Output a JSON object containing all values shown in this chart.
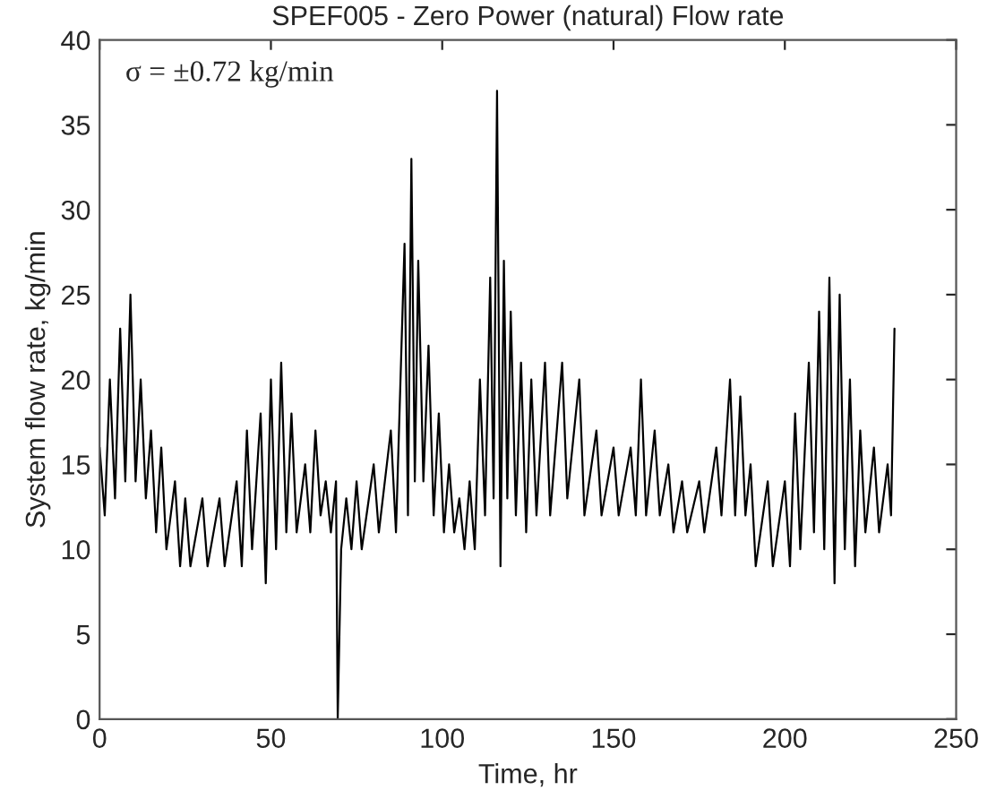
{
  "chart_data": {
    "type": "line",
    "title": "SPEF005 - Zero Power (natural) Flow rate",
    "xlabel": "Time, hr",
    "ylabel": "System flow rate, kg/min",
    "annotations": [
      "σ = ±0.72 kg/min"
    ],
    "xlim": [
      0,
      250
    ],
    "xticks": [
      0,
      50,
      100,
      150,
      200,
      250
    ],
    "ylim": [
      0,
      40
    ],
    "yticks": [
      0,
      5,
      10,
      15,
      20,
      25,
      30,
      35,
      40
    ],
    "grid": false,
    "legend": false,
    "line_style": "solid",
    "marker": "none",
    "series": [
      {
        "color": "#000000",
        "x": [
          0,
          1.5,
          3,
          4.5,
          6,
          7.5,
          9,
          10.5,
          12,
          13.5,
          15,
          16.5,
          18,
          19.5,
          22,
          23.5,
          25,
          26.5,
          30,
          31.5,
          35,
          36.5,
          40,
          41.5,
          43,
          44.5,
          47,
          48.5,
          50,
          51.5,
          53,
          54.5,
          56,
          57.5,
          60,
          61.5,
          63,
          64.5,
          66,
          67.5,
          69,
          69.5,
          70.5,
          72,
          73.5,
          75,
          76.5,
          80,
          81.5,
          85,
          86.5,
          89,
          90,
          91,
          92,
          93,
          94.5,
          96,
          97.5,
          99,
          100.5,
          102,
          103.5,
          105,
          106.5,
          108,
          109.5,
          111,
          112.5,
          114,
          115,
          116,
          117,
          118,
          119,
          120,
          121.5,
          123,
          124.5,
          126,
          127.5,
          130,
          131.5,
          135,
          136.5,
          140,
          141.5,
          145,
          146.5,
          150,
          151.5,
          155,
          156.5,
          158,
          159.5,
          162,
          163.5,
          166,
          167.5,
          170,
          171.5,
          175,
          176.5,
          180,
          181.5,
          184,
          185.5,
          187,
          188.5,
          190,
          191.5,
          195,
          196.5,
          200,
          201.5,
          203,
          204.5,
          207,
          208.5,
          210,
          211.5,
          213,
          214.5,
          216,
          217.5,
          219,
          220.5,
          222,
          223.5,
          226,
          227.5,
          230,
          231,
          232
        ],
        "values": [
          16,
          12,
          20,
          13,
          23,
          14,
          25,
          14,
          20,
          13,
          17,
          11,
          16,
          10,
          14,
          9,
          13,
          9,
          13,
          9,
          13,
          9,
          14,
          9,
          17,
          10,
          18,
          8,
          20,
          10,
          21,
          11,
          18,
          11,
          15,
          11,
          17,
          12,
          14,
          11,
          14,
          0,
          10,
          13,
          10,
          14,
          10,
          15,
          11,
          17,
          11,
          28,
          12,
          33,
          14,
          27,
          14,
          22,
          12,
          18,
          11,
          15,
          11,
          13,
          10,
          14,
          10,
          20,
          12,
          26,
          13,
          37,
          9,
          27,
          13,
          24,
          12,
          21,
          11,
          20,
          12,
          21,
          12,
          21,
          13,
          20,
          12,
          17,
          12,
          16,
          12,
          16,
          12,
          20,
          12,
          17,
          12,
          15,
          11,
          14,
          11,
          14,
          11,
          16,
          12,
          20,
          12,
          19,
          12,
          15,
          9,
          14,
          9,
          14,
          9,
          18,
          10,
          21,
          11,
          24,
          10,
          26,
          8,
          25,
          10,
          20,
          9,
          17,
          11,
          16,
          11,
          15,
          12,
          23
        ]
      }
    ]
  }
}
